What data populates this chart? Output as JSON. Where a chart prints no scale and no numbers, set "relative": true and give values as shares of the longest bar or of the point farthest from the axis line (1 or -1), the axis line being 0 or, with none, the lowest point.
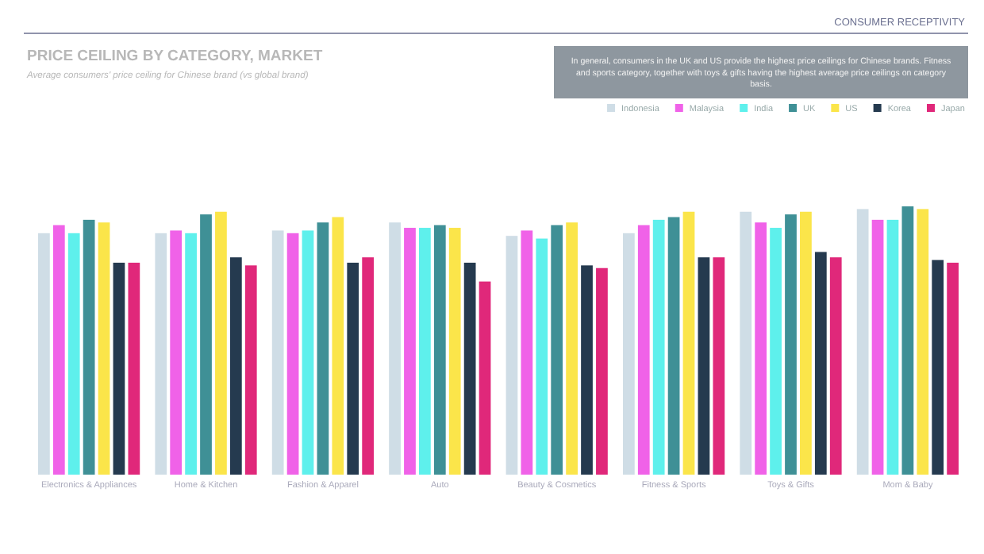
{
  "chart_data": {
    "type": "bar",
    "title": "PRICE CEILING BY CATEGORY, MARKET",
    "subtitle": "Average consumers' price ceiling for Chinese brand (vs global brand)",
    "annotations": [
      "CONSUMER RECEPTIVITY",
      "In general, consumers in the UK and US provide the highest price ceilings for Chinese brands. Fitness and sports category, together with toys & gifts having the highest average price ceilings on category basis."
    ],
    "relative": true,
    "legend": "top right",
    "categories": [
      "Electronics & Appliances",
      "Home & Kitchen",
      "Fashion & Apparel",
      "Auto",
      "Beauty & Cosmetics",
      "Fitness & Sports",
      "Toys & Gifts",
      "Mom & Baby"
    ],
    "series": [
      {
        "name": "Indonesia",
        "color": "#cfdde6",
        "values": [
          0.9,
          0.9,
          0.91,
          0.94,
          0.89,
          0.9,
          0.98,
          0.99
        ]
      },
      {
        "name": "Malaysia",
        "color": "#f062e8",
        "values": [
          0.93,
          0.91,
          0.9,
          0.92,
          0.91,
          0.93,
          0.94,
          0.95
        ]
      },
      {
        "name": "India",
        "color": "#5ef0ec",
        "values": [
          0.9,
          0.9,
          0.91,
          0.92,
          0.88,
          0.95,
          0.92,
          0.95
        ]
      },
      {
        "name": "UK",
        "color": "#3f9096",
        "values": [
          0.95,
          0.97,
          0.94,
          0.93,
          0.93,
          0.96,
          0.97,
          1
        ]
      },
      {
        "name": "US",
        "color": "#fbe54a",
        "values": [
          0.94,
          0.98,
          0.96,
          0.92,
          0.94,
          0.98,
          0.98,
          0.99
        ]
      },
      {
        "name": "Korea",
        "color": "#253a4f",
        "values": [
          0.79,
          0.81,
          0.79,
          0.79,
          0.78,
          0.81,
          0.83,
          0.8
        ]
      },
      {
        "name": "Japan",
        "color": "#e0287a",
        "values": [
          0.79,
          0.78,
          0.81,
          0.72,
          0.77,
          0.81,
          0.81,
          0.79
        ]
      }
    ]
  }
}
